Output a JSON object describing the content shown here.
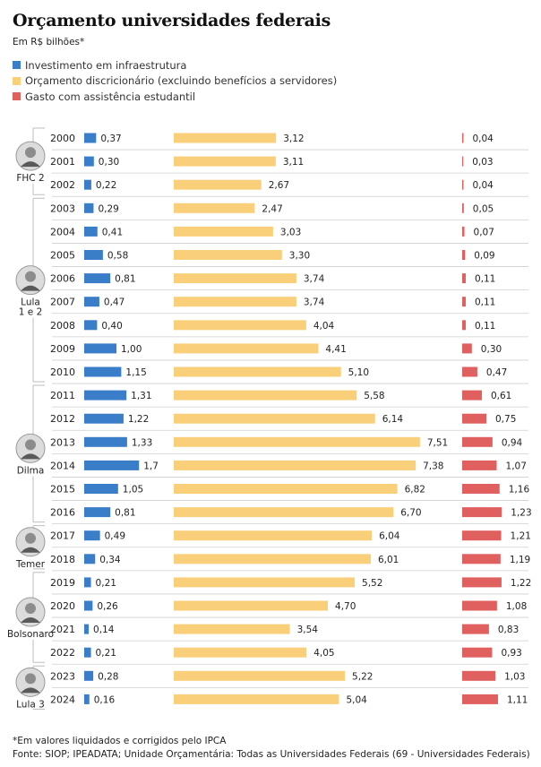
{
  "chart_data": {
    "type": "bar",
    "title": "Orçamento universidades federais",
    "subtitle": "Em R$ bilhões*",
    "legend": [
      "Investimento em infraestrutura",
      "Orçamento discricionário (excluindo benefícios a servidores)",
      "Gasto com assistência estudantil"
    ],
    "colors": {
      "infra": "#3a7dc9",
      "disc": "#f9cf7a",
      "assist": "#e05f5f"
    },
    "categories": [
      "2000",
      "2001",
      "2002",
      "2003",
      "2004",
      "2005",
      "2006",
      "2007",
      "2008",
      "2009",
      "2010",
      "2011",
      "2012",
      "2013",
      "2014",
      "2015",
      "2016",
      "2017",
      "2018",
      "2019",
      "2020",
      "2021",
      "2022",
      "2023",
      "2024"
    ],
    "series": [
      {
        "name": "Investimento em infraestrutura",
        "values": [
          0.37,
          0.3,
          0.22,
          0.29,
          0.41,
          0.58,
          0.81,
          0.47,
          0.4,
          1.0,
          1.15,
          1.31,
          1.22,
          1.33,
          1.7,
          1.05,
          0.81,
          0.49,
          0.34,
          0.21,
          0.26,
          0.14,
          0.21,
          0.28,
          0.16
        ],
        "labels": [
          "0,37",
          "0,30",
          "0,22",
          "0,29",
          "0,41",
          "0,58",
          "0,81",
          "0,47",
          "0,40",
          "1,00",
          "1,15",
          "1,31",
          "1,22",
          "1,33",
          "1,7",
          "1,05",
          "0,81",
          "0,49",
          "0,34",
          "0,21",
          "0,26",
          "0,14",
          "0,21",
          "0,28",
          "0,16"
        ]
      },
      {
        "name": "Orçamento discricionário (excluindo benefícios a servidores)",
        "values": [
          3.12,
          3.11,
          2.67,
          2.47,
          3.03,
          3.3,
          3.74,
          3.74,
          4.04,
          4.41,
          5.1,
          5.58,
          6.14,
          7.51,
          7.38,
          6.82,
          6.7,
          6.04,
          6.01,
          5.52,
          4.7,
          3.54,
          4.05,
          5.22,
          5.04
        ],
        "labels": [
          "3,12",
          "3,11",
          "2,67",
          "2,47",
          "3,03",
          "3,30",
          "3,74",
          "3,74",
          "4,04",
          "4,41",
          "5,10",
          "5,58",
          "6,14",
          "7,51",
          "7,38",
          "6,82",
          "6,70",
          "6,04",
          "6,01",
          "5,52",
          "4,70",
          "3,54",
          "4,05",
          "5,22",
          "5,04"
        ]
      },
      {
        "name": "Gasto com assistência estudantil",
        "values": [
          0.04,
          0.03,
          0.04,
          0.05,
          0.07,
          0.09,
          0.11,
          0.11,
          0.11,
          0.3,
          0.47,
          0.61,
          0.75,
          0.94,
          1.07,
          1.16,
          1.23,
          1.21,
          1.19,
          1.22,
          1.08,
          0.83,
          0.93,
          1.03,
          1.11
        ],
        "labels": [
          "0,04",
          "0,03",
          "0,04",
          "0,05",
          "0,07",
          "0,09",
          "0,11",
          "0,11",
          "0,11",
          "0,30",
          "0,47",
          "0,61",
          "0,75",
          "0,94",
          "1,07",
          "1,16",
          "1,23",
          "1,21",
          "1,19",
          "1,22",
          "1,08",
          "0,83",
          "0,93",
          "1,03",
          "1,11"
        ]
      }
    ],
    "presidents": [
      {
        "label": "FHC 2",
        "first": 0,
        "last": 2
      },
      {
        "label": "Lula\n1 e 2",
        "first": 3,
        "last": 10
      },
      {
        "label": "Dilma",
        "first": 11,
        "last": 16
      },
      {
        "label": "Temer",
        "first": 17,
        "last": 18
      },
      {
        "label": "Bolsonaro",
        "first": 19,
        "last": 22
      },
      {
        "label": "Lula 3",
        "first": 23,
        "last": 24
      }
    ],
    "notes": [
      "*Em valores liquidados e corrigidos pelo IPCA",
      "Fonte: SIOP; IPEADATA; Unidade Orçamentária: Todas as Universidades Federais (69 - Universidades Federais)"
    ]
  }
}
